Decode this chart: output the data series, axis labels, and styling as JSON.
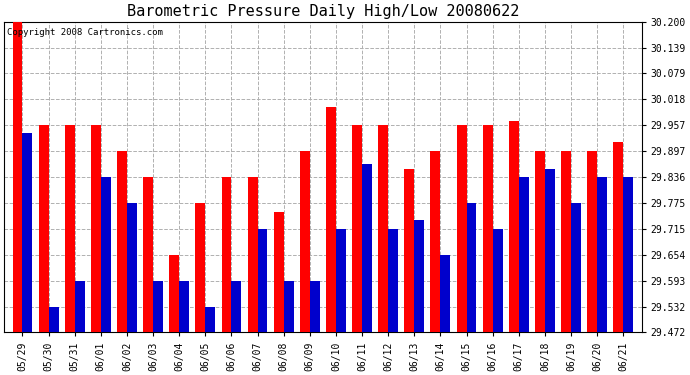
{
  "title": "Barometric Pressure Daily High/Low 20080622",
  "copyright": "Copyright 2008 Cartronics.com",
  "dates": [
    "05/29",
    "05/30",
    "05/31",
    "06/01",
    "06/02",
    "06/03",
    "06/04",
    "06/05",
    "06/06",
    "06/07",
    "06/08",
    "06/09",
    "06/10",
    "06/11",
    "06/12",
    "06/13",
    "06/14",
    "06/15",
    "06/16",
    "06/17",
    "06/18",
    "06/19",
    "06/20",
    "06/21"
  ],
  "highs": [
    30.2,
    29.957,
    29.957,
    29.957,
    29.897,
    29.836,
    29.654,
    29.775,
    29.836,
    29.836,
    29.754,
    29.897,
    30.0,
    29.957,
    29.957,
    29.854,
    29.897,
    29.957,
    29.957,
    29.968,
    29.897,
    29.897,
    29.897,
    29.918
  ],
  "lows": [
    29.94,
    29.532,
    29.593,
    29.836,
    29.775,
    29.593,
    29.593,
    29.532,
    29.593,
    29.715,
    29.593,
    29.593,
    29.715,
    29.867,
    29.715,
    29.736,
    29.654,
    29.775,
    29.715,
    29.836,
    29.854,
    29.775,
    29.836,
    29.836
  ],
  "high_color": "#ff0000",
  "low_color": "#0000cc",
  "background_color": "#ffffff",
  "plot_bg_color": "#ffffff",
  "grid_color": "#b0b0b0",
  "ymin": 29.472,
  "ymax": 30.2,
  "yticks": [
    29.472,
    29.532,
    29.593,
    29.654,
    29.715,
    29.775,
    29.836,
    29.897,
    29.957,
    30.018,
    30.079,
    30.139,
    30.2
  ],
  "title_fontsize": 11,
  "copyright_fontsize": 6.5,
  "tick_fontsize": 7,
  "bar_width": 0.38,
  "figwidth": 6.9,
  "figheight": 3.75,
  "dpi": 100
}
